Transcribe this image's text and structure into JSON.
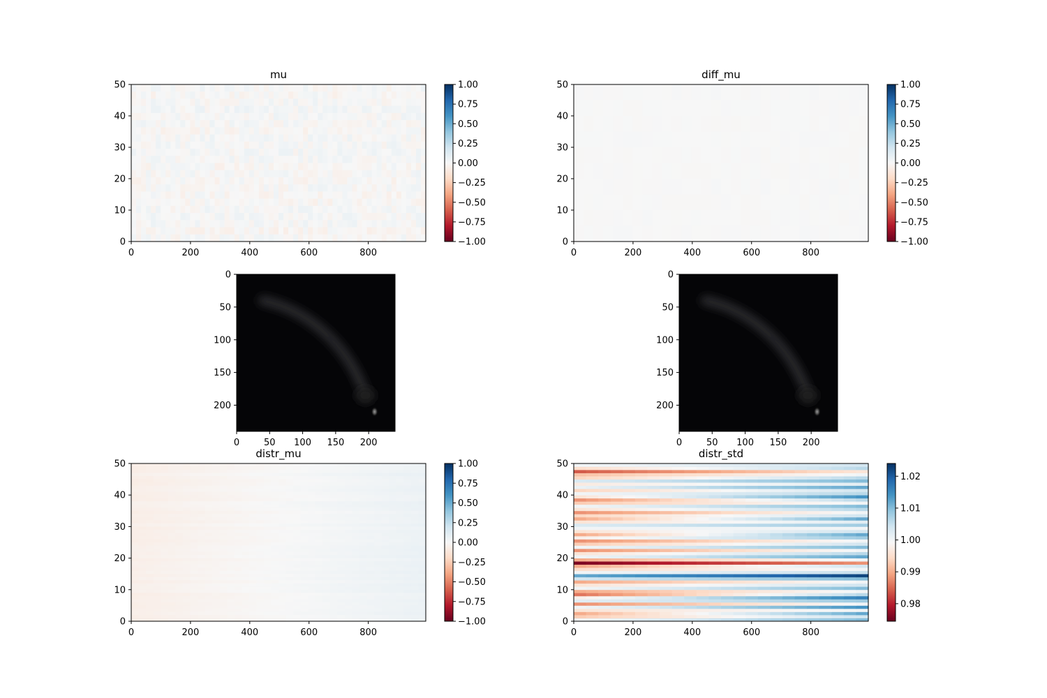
{
  "chart_data": [
    {
      "id": "mu",
      "type": "heatmap",
      "title": "mu",
      "xlim": [
        0,
        994
      ],
      "ylim": [
        0,
        50
      ],
      "xticks": [
        0,
        200,
        400,
        600,
        800
      ],
      "yticks": [
        0,
        10,
        20,
        30,
        40,
        50
      ],
      "colormap": "RdBu",
      "clim": [
        -1.0,
        1.0
      ],
      "colorbar_ticks": [
        -1.0,
        -0.75,
        -0.5,
        -0.25,
        0.0,
        0.25,
        0.5,
        0.75,
        1.0
      ],
      "colorbar_labels": [
        "−1.00",
        "−0.75",
        "−0.50",
        "−0.25",
        "0.00",
        "0.25",
        "0.50",
        "0.75",
        "1.00"
      ],
      "value_range": [
        -0.06,
        0.06
      ],
      "pattern": "low-amplitude noise near 0"
    },
    {
      "id": "diff_mu",
      "type": "heatmap",
      "title": "diff_mu",
      "xlim": [
        0,
        994
      ],
      "ylim": [
        0,
        50
      ],
      "xticks": [
        0,
        200,
        400,
        600,
        800
      ],
      "yticks": [
        0,
        10,
        20,
        30,
        40,
        50
      ],
      "colormap": "RdBu",
      "clim": [
        -1.0,
        1.0
      ],
      "colorbar_ticks": [
        -1.0,
        -0.75,
        -0.5,
        -0.25,
        0.0,
        0.25,
        0.5,
        0.75,
        1.0
      ],
      "colorbar_labels": [
        "−1.00",
        "−0.75",
        "−0.50",
        "−0.25",
        "0.00",
        "0.25",
        "0.50",
        "0.75",
        "1.00"
      ],
      "value_range": [
        -0.01,
        0.01
      ],
      "pattern": "nearly uniform 0"
    },
    {
      "id": "image_left",
      "type": "heatmap",
      "title": "",
      "xlim": [
        0,
        240
      ],
      "ylim": [
        240,
        0
      ],
      "xticks": [
        0,
        50,
        100,
        150,
        200
      ],
      "yticks": [
        0,
        50,
        100,
        150,
        200
      ],
      "colormap": "gray",
      "pattern": "dark image with faint curved streak from (40,40) to (200,190) and bright spot near (210,210)"
    },
    {
      "id": "image_right",
      "type": "heatmap",
      "title": "",
      "xlim": [
        0,
        240
      ],
      "ylim": [
        240,
        0
      ],
      "xticks": [
        0,
        50,
        100,
        150,
        200
      ],
      "yticks": [
        0,
        50,
        100,
        150,
        200
      ],
      "colormap": "gray",
      "pattern": "dark image with faint curved streak from (40,40) to (200,190) and bright spot near (210,210)"
    },
    {
      "id": "distr_mu",
      "type": "heatmap",
      "title": "distr_mu",
      "xlim": [
        0,
        994
      ],
      "ylim": [
        0,
        50
      ],
      "xticks": [
        0,
        200,
        400,
        600,
        800
      ],
      "yticks": [
        0,
        10,
        20,
        30,
        40,
        50
      ],
      "colormap": "RdBu",
      "clim": [
        -1.0,
        1.0
      ],
      "colorbar_ticks": [
        -1.0,
        -0.75,
        -0.5,
        -0.25,
        0.0,
        0.25,
        0.5,
        0.75,
        1.0
      ],
      "colorbar_labels": [
        "−1.00",
        "−0.75",
        "−0.50",
        "−0.25",
        "0.00",
        "0.25",
        "0.50",
        "0.75",
        "1.00"
      ],
      "value_range": [
        -0.06,
        0.06
      ],
      "pattern": "horizontal bands, slightly negative at left fading to slightly positive at right"
    },
    {
      "id": "distr_std",
      "type": "heatmap",
      "title": "distr_std",
      "xlim": [
        0,
        994
      ],
      "ylim": [
        0,
        50
      ],
      "xticks": [
        0,
        200,
        400,
        600,
        800
      ],
      "yticks": [
        0,
        10,
        20,
        30,
        40,
        50
      ],
      "colormap": "RdBu",
      "clim": [
        0.9745,
        1.024
      ],
      "colorbar_ticks": [
        0.98,
        0.99,
        1.0,
        1.01,
        1.02
      ],
      "colorbar_labels": [
        "0.98",
        "0.99",
        "1.00",
        "1.01",
        "1.02"
      ],
      "row_values_left": [
        1.0,
        0.993,
        0.99,
        0.996,
        1.0,
        0.988,
        1.002,
        0.998,
        0.986,
        0.99,
        1.0,
        0.996,
        0.99,
        1.004,
        1.012,
        1.0,
        0.995,
        0.99,
        0.976,
        0.99,
        1.0,
        0.996,
        0.988,
        1.0,
        0.993,
        0.988,
        0.998,
        0.99,
        0.996,
        1.0,
        1.003,
        0.996,
        0.99,
        0.994,
        0.988,
        0.996,
        1.0,
        0.993,
        0.988,
        0.996,
        1.0,
        0.994,
        1.001,
        0.997,
        1.003,
        0.994,
        0.992,
        0.984,
        0.995,
        1.0
      ],
      "row_values_right": [
        1.01,
        1.004,
        1.012,
        1.0,
        1.014,
        1.0,
        1.008,
        1.016,
        1.006,
        1.0,
        1.01,
        1.004,
        1.0,
        1.01,
        1.022,
        1.005,
        1.0,
        1.004,
        0.988,
        1.0,
        1.012,
        1.006,
        1.0,
        1.01,
        1.004,
        1.0,
        1.008,
        1.012,
        1.004,
        1.0,
        1.008,
        1.002,
        1.012,
        1.004,
        1.0,
        1.006,
        1.01,
        1.0,
        1.006,
        1.014,
        1.006,
        1.004,
        1.012,
        1.002,
        1.01,
        1.006,
        1.0,
        0.996,
        1.006,
        1.004
      ]
    }
  ]
}
